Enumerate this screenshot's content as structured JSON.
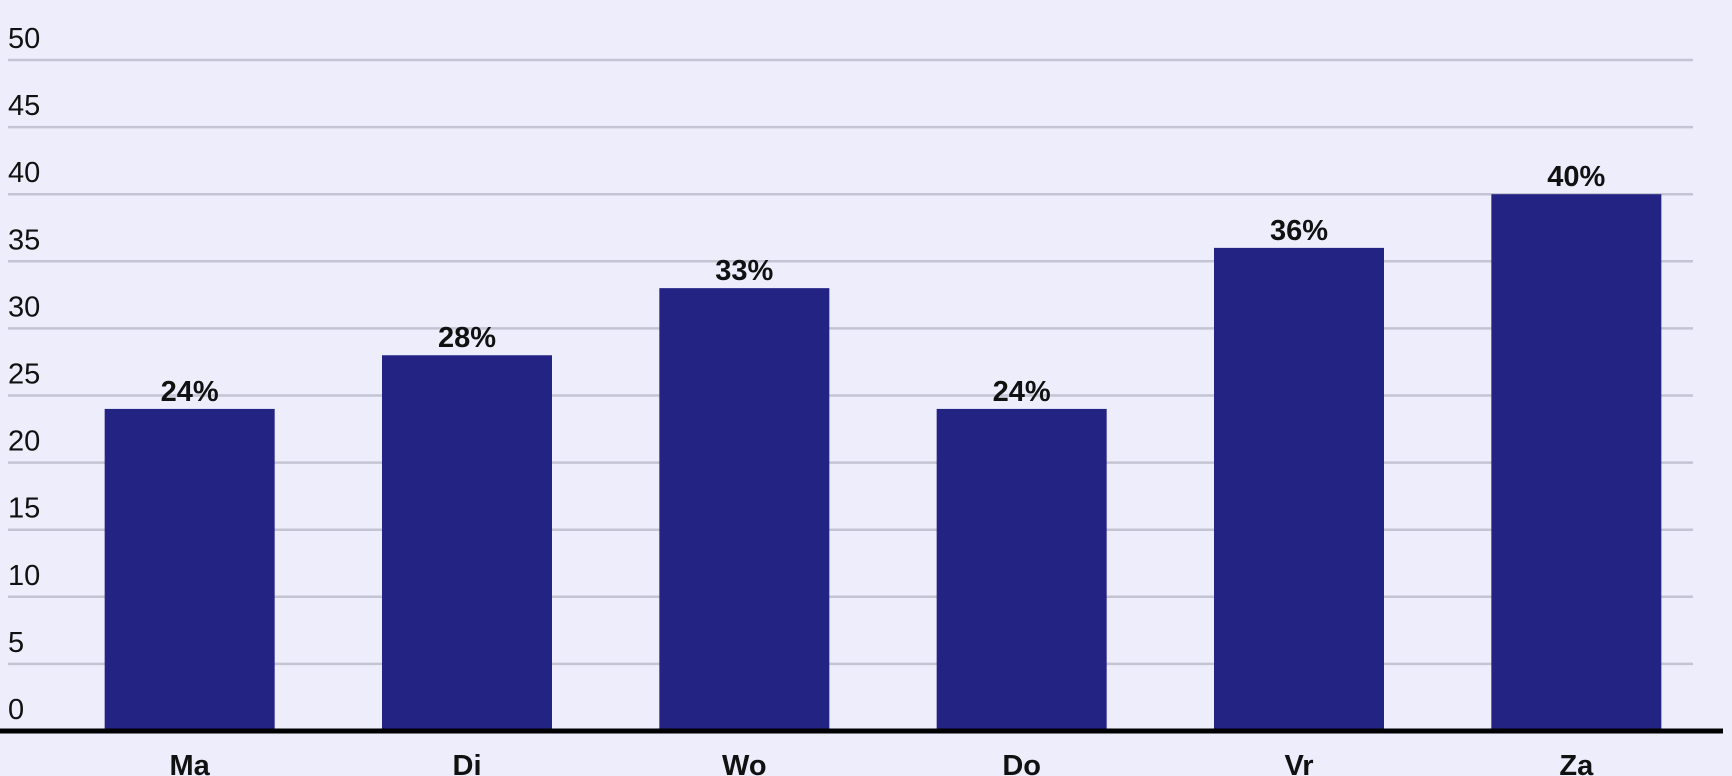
{
  "chart_data": {
    "type": "bar",
    "categories": [
      "Ma",
      "Di",
      "Wo",
      "Do",
      "Vr",
      "Za"
    ],
    "values": [
      24,
      28,
      33,
      24,
      36,
      40
    ],
    "value_labels": [
      "24%",
      "28%",
      "33%",
      "24%",
      "36%",
      "40%"
    ],
    "color": "#232384",
    "ylim": [
      0,
      50
    ],
    "yticks": [
      0,
      5,
      10,
      15,
      20,
      25,
      30,
      35,
      40,
      45,
      50
    ],
    "grid": true
  }
}
